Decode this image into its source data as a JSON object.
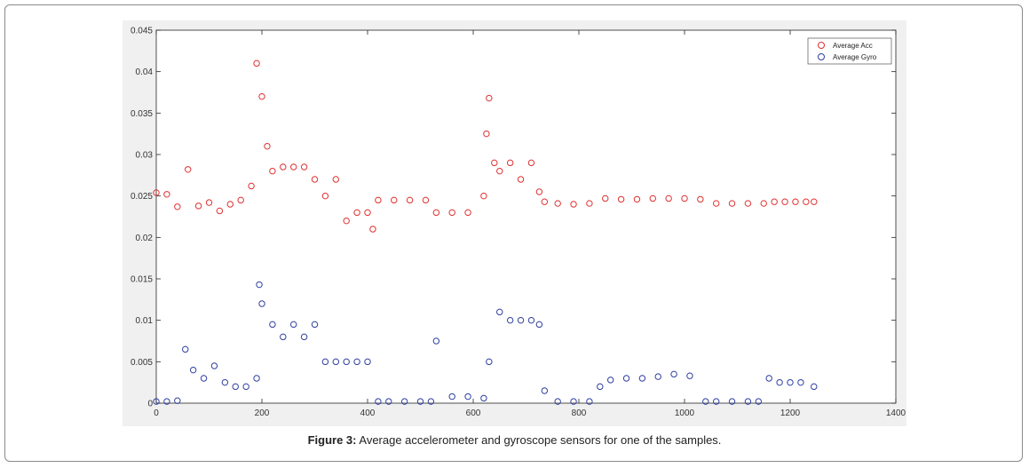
{
  "caption": {
    "prefix": "Figure 3:",
    "text": " Average accelerometer and gyroscope sensors for one of the samples."
  },
  "chart_data": {
    "type": "scatter",
    "title": "",
    "xlabel": "",
    "ylabel": "",
    "xlim": [
      0,
      1400
    ],
    "ylim": [
      0,
      0.045
    ],
    "xticks": [
      0,
      200,
      400,
      600,
      800,
      1000,
      1200,
      1400
    ],
    "yticks": [
      0,
      0.005,
      0.01,
      0.015,
      0.02,
      0.025,
      0.03,
      0.035,
      0.04,
      0.045
    ],
    "ytick_labels": [
      "0",
      "0.005",
      "0.01",
      "0.015",
      "0.02",
      "0.025",
      "0.03",
      "0.035",
      "0.04",
      "0.045"
    ],
    "legend_position": "top-right",
    "grid": false,
    "series": [
      {
        "name": "Average Acc",
        "color": "#e03131",
        "marker": "circle-open",
        "x": [
          0,
          20,
          40,
          60,
          80,
          100,
          120,
          140,
          160,
          180,
          190,
          200,
          210,
          220,
          240,
          260,
          280,
          300,
          320,
          340,
          360,
          380,
          400,
          410,
          420,
          450,
          480,
          510,
          530,
          560,
          590,
          620,
          625,
          630,
          640,
          650,
          670,
          690,
          710,
          725,
          735,
          760,
          790,
          820,
          850,
          880,
          910,
          940,
          970,
          1000,
          1030,
          1060,
          1090,
          1120,
          1150,
          1170,
          1190,
          1210,
          1230,
          1245
        ],
        "y": [
          0.0254,
          0.0252,
          0.0237,
          0.0282,
          0.0238,
          0.0242,
          0.0232,
          0.024,
          0.0245,
          0.0262,
          0.041,
          0.037,
          0.031,
          0.028,
          0.0285,
          0.0285,
          0.0285,
          0.027,
          0.025,
          0.027,
          0.022,
          0.023,
          0.023,
          0.021,
          0.0245,
          0.0245,
          0.0245,
          0.0245,
          0.023,
          0.023,
          0.023,
          0.025,
          0.0325,
          0.0368,
          0.029,
          0.028,
          0.029,
          0.027,
          0.029,
          0.0255,
          0.0243,
          0.0241,
          0.024,
          0.0241,
          0.0247,
          0.0246,
          0.0246,
          0.0247,
          0.0247,
          0.0247,
          0.0246,
          0.0241,
          0.0241,
          0.0241,
          0.0241,
          0.0243,
          0.0243,
          0.0243,
          0.0243,
          0.0243
        ]
      },
      {
        "name": "Average Gyro",
        "color": "#2f3fa0",
        "marker": "circle-open",
        "x": [
          0,
          20,
          40,
          55,
          70,
          90,
          110,
          130,
          150,
          170,
          190,
          195,
          200,
          220,
          240,
          260,
          280,
          300,
          320,
          340,
          360,
          380,
          400,
          420,
          440,
          470,
          500,
          520,
          530,
          560,
          590,
          620,
          630,
          650,
          670,
          690,
          710,
          725,
          735,
          760,
          790,
          820,
          840,
          860,
          890,
          920,
          950,
          980,
          1010,
          1040,
          1060,
          1090,
          1120,
          1140,
          1160,
          1180,
          1200,
          1220,
          1245
        ],
        "y": [
          0.0002,
          0.0002,
          0.0003,
          0.0065,
          0.004,
          0.003,
          0.0045,
          0.0025,
          0.002,
          0.002,
          0.003,
          0.0143,
          0.012,
          0.0095,
          0.008,
          0.0095,
          0.008,
          0.0095,
          0.005,
          0.005,
          0.005,
          0.005,
          0.005,
          0.0002,
          0.0002,
          0.0002,
          0.0002,
          0.0002,
          0.0075,
          0.0008,
          0.0008,
          0.0006,
          0.005,
          0.011,
          0.01,
          0.01,
          0.01,
          0.0095,
          0.0015,
          0.0002,
          0.0002,
          0.0002,
          0.002,
          0.0028,
          0.003,
          0.003,
          0.0032,
          0.0035,
          0.0033,
          0.0002,
          0.0002,
          0.0002,
          0.0002,
          0.0002,
          0.003,
          0.0025,
          0.0025,
          0.0025,
          0.002
        ]
      }
    ]
  }
}
